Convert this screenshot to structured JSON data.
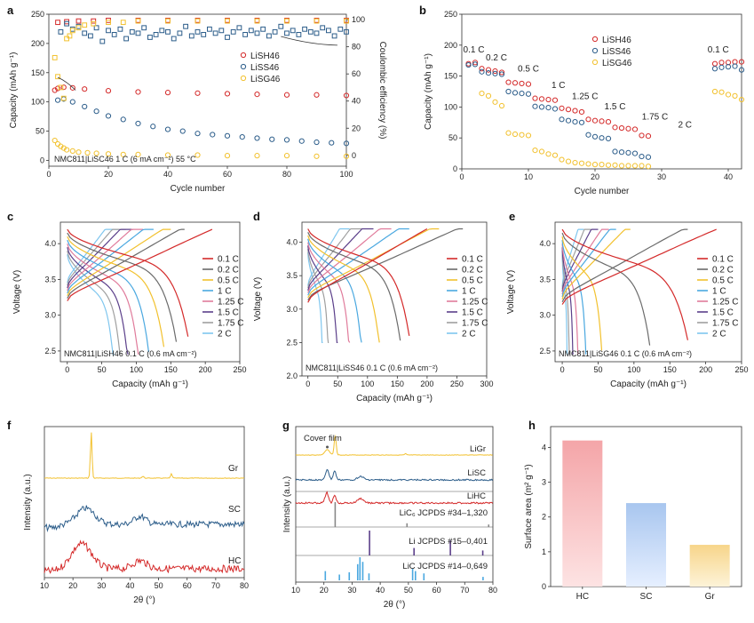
{
  "colors": {
    "red": "#d42a2a",
    "blue": "#2c5d8a",
    "yellow": "#f2c12e",
    "grey": "#888888",
    "purple": "#5b3f8a",
    "cyan": "#4aa8e0"
  },
  "rate_colors": [
    "#d42a2a",
    "#6b6b6b",
    "#f2c12e",
    "#4aa8e0",
    "#e07b9b",
    "#5b3f8a",
    "#9f9f9f",
    "#7fc6ee"
  ],
  "chart_data": [
    {
      "id": "a",
      "type": "scatter",
      "panel_letter": "a",
      "xlabel": "Cycle number",
      "ylabel": "Capacity (mAh g⁻¹)",
      "y2label": "Coulombic efficiency (%)",
      "xlim": [
        0,
        100
      ],
      "ylim": [
        -10,
        250
      ],
      "y2lim": [
        -8,
        104
      ],
      "xticks": [
        "0",
        "20",
        "40",
        "60",
        "80",
        "100"
      ],
      "yticks": [
        "0",
        "50",
        "100",
        "150",
        "200",
        "250"
      ],
      "y2ticks": [
        "0",
        "20",
        "40",
        "60",
        "80",
        "100"
      ],
      "annotation": "NMC811|LiSC46 1 C (6 mA cm⁻²) 55 °C",
      "legend": [
        "LiSH46",
        "LiSS46",
        "LiSG46"
      ],
      "capacity_series": [
        {
          "name": "LiSH46",
          "x": [
            2,
            3,
            5,
            8,
            12,
            20,
            30,
            40,
            50,
            60,
            70,
            80,
            90,
            100
          ],
          "y": [
            120,
            123,
            125,
            124,
            122,
            119,
            117,
            116,
            115,
            114,
            113,
            112,
            112,
            111
          ]
        },
        {
          "name": "LiSS46",
          "x": [
            3,
            5,
            8,
            12,
            16,
            20,
            25,
            30,
            35,
            40,
            45,
            50,
            55,
            60,
            65,
            70,
            75,
            80,
            85,
            90,
            95,
            100
          ],
          "y": [
            103,
            105,
            100,
            92,
            84,
            76,
            70,
            63,
            58,
            53,
            50,
            46,
            44,
            42,
            40,
            38,
            36,
            35,
            33,
            31,
            30,
            29
          ]
        },
        {
          "name": "LiSG46",
          "x": [
            2,
            3,
            4,
            5,
            6,
            8,
            10,
            13,
            16,
            20,
            25,
            30,
            40,
            50,
            60,
            70,
            80,
            90,
            100
          ],
          "y": [
            34,
            28,
            24,
            21,
            18,
            16,
            14,
            13,
            12,
            11,
            10,
            10,
            9,
            9,
            8,
            8,
            8,
            7,
            7
          ]
        }
      ],
      "ce_series": [
        {
          "name": "LiSH46",
          "x": [
            3,
            6,
            10,
            15,
            20,
            30,
            40,
            50,
            60,
            70,
            80,
            90,
            100
          ],
          "y": [
            98,
            98.5,
            99,
            99,
            99.5,
            99.5,
            99.5,
            99.5,
            99.5,
            99.5,
            99.5,
            99.5,
            99.5
          ]
        },
        {
          "name": "LiSS46",
          "x": [
            4,
            6,
            8,
            10,
            12,
            14,
            16,
            18,
            20,
            22,
            24,
            26,
            28,
            30,
            32,
            34,
            36,
            38,
            40,
            42,
            44,
            46,
            48,
            50,
            52,
            54,
            56,
            58,
            60,
            62,
            64,
            66,
            68,
            70,
            72,
            74,
            76,
            78,
            80,
            82,
            84,
            86,
            88,
            90,
            92,
            94,
            96,
            98,
            100
          ],
          "y": [
            91,
            97,
            93,
            95,
            90,
            88,
            94,
            84,
            92,
            89,
            93,
            86,
            91,
            90,
            94,
            87,
            89,
            92,
            91,
            86,
            90,
            95,
            88,
            91,
            89,
            93,
            90,
            92,
            87,
            91,
            94,
            89,
            92,
            90,
            93,
            88,
            91,
            95,
            90,
            92,
            89,
            93,
            91,
            90,
            94,
            92,
            88,
            93,
            91
          ]
        },
        {
          "name": "LiSG46",
          "x": [
            2,
            3,
            4,
            5,
            6,
            7,
            8,
            10,
            12,
            15,
            20,
            25,
            30,
            40,
            50,
            60,
            70,
            80,
            90,
            100
          ],
          "y": [
            72,
            58,
            50,
            42,
            86,
            88,
            92,
            94,
            96,
            97,
            98,
            98,
            99,
            99,
            99,
            99,
            99,
            99,
            99,
            99
          ]
        }
      ]
    },
    {
      "id": "b",
      "type": "scatter",
      "panel_letter": "b",
      "xlabel": "Cycle number",
      "ylabel": "Capacity (mAh g⁻¹)",
      "xlim": [
        0,
        42
      ],
      "ylim": [
        0,
        250
      ],
      "xticks": [
        "0",
        "10",
        "20",
        "30",
        "40"
      ],
      "yticks": [
        "0",
        "50",
        "100",
        "150",
        "200",
        "250"
      ],
      "legend": [
        "LiSH46",
        "LiSS46",
        "LiSG46"
      ],
      "rate_labels": [
        "0.1 C",
        "0.2 C",
        "0.5 C",
        "1 C",
        "1.25 C",
        "1.5 C",
        "1.75 C",
        "2 C",
        "0.1 C"
      ],
      "series": [
        {
          "name": "LiSH46",
          "y": [
            170,
            172,
            162,
            160,
            158,
            156,
            140,
            139,
            138,
            137,
            114,
            113,
            112,
            111,
            98,
            96,
            94,
            92,
            80,
            78,
            77,
            76,
            67,
            66,
            65,
            64,
            54,
            53,
            null,
            null,
            null,
            null,
            null,
            null,
            null,
            null,
            null,
            170,
            172,
            172,
            173,
            173
          ]
        },
        {
          "name": "LiSS46",
          "y": [
            168,
            169,
            157,
            155,
            154,
            153,
            125,
            123,
            122,
            121,
            101,
            100,
            99,
            97,
            80,
            78,
            76,
            75,
            55,
            52,
            50,
            49,
            28,
            27,
            26,
            25,
            20,
            19,
            null,
            null,
            null,
            null,
            null,
            null,
            null,
            null,
            null,
            162,
            164,
            165,
            166,
            160
          ]
        },
        {
          "name": "LiSG46",
          "y": [
            null,
            null,
            122,
            118,
            108,
            102,
            58,
            56,
            55,
            54,
            30,
            28,
            24,
            22,
            15,
            12,
            10,
            9,
            8,
            7,
            7,
            6,
            6,
            5,
            5,
            5,
            5,
            4,
            null,
            null,
            null,
            null,
            null,
            null,
            null,
            null,
            null,
            125,
            124,
            120,
            118,
            112
          ]
        }
      ]
    },
    {
      "id": "c",
      "type": "line",
      "panel_letter": "c",
      "xlabel": "Capacity (mAh g⁻¹)",
      "ylabel": "Voltage (V)",
      "xlim": [
        -10,
        250
      ],
      "ylim": [
        2.35,
        4.3
      ],
      "xticks": [
        "0",
        "50",
        "100",
        "150",
        "200",
        "250"
      ],
      "yticks": [
        "2.5",
        "3.0",
        "3.5",
        "4.0"
      ],
      "annotation": "NMC811|LiSH46 0.1 C (0.6 mA cm⁻²)",
      "legend": [
        "0.1 C",
        "0.2 C",
        "0.5 C",
        "1 C",
        "1.25 C",
        "1.5 C",
        "1.75 C",
        "2 C"
      ],
      "charge_caps": [
        210,
        170,
        150,
        125,
        110,
        95,
        85,
        75
      ],
      "discharge_caps": [
        175,
        158,
        140,
        118,
        103,
        88,
        78,
        68
      ]
    },
    {
      "id": "d",
      "type": "line",
      "panel_letter": "d",
      "xlabel": "Capacity (mAh g⁻¹)",
      "ylabel": "Voltage (V)",
      "xlim": [
        -10,
        300
      ],
      "ylim": [
        2.0,
        4.3
      ],
      "xticks": [
        "0",
        "50",
        "100",
        "150",
        "200",
        "250",
        "300"
      ],
      "yticks": [
        "2.0",
        "2.5",
        "3.0",
        "3.5",
        "4.0"
      ],
      "annotation": "NMC811|LiSS46 0.1 C (0.6 mA cm⁻²)",
      "legend": [
        "0.1 C",
        "0.2 C",
        "0.5 C",
        "1 C",
        "1.25 C",
        "1.5 C",
        "1.75 C",
        "2 C"
      ],
      "charge_caps": [
        200,
        260,
        220,
        170,
        140,
        110,
        90,
        70
      ],
      "discharge_caps": [
        170,
        155,
        120,
        90,
        70,
        50,
        35,
        25
      ]
    },
    {
      "id": "e",
      "type": "line",
      "panel_letter": "e",
      "xlabel": "Capacity (mAh g⁻¹)",
      "ylabel": "Voltage (V)",
      "xlim": [
        -10,
        250
      ],
      "ylim": [
        2.35,
        4.3
      ],
      "xticks": [
        "0",
        "50",
        "100",
        "150",
        "200",
        "250"
      ],
      "yticks": [
        "2.5",
        "3.0",
        "3.5",
        "4.0"
      ],
      "annotation": "NMC811|LiSG46 0.1 C (0.6 mA cm⁻²)",
      "legend": [
        "0.1 C",
        "0.2 C",
        "0.5 C",
        "1 C",
        "1.25 C",
        "1.5 C",
        "1.75 C",
        "2 C"
      ],
      "charge_caps": [
        215,
        175,
        95,
        75,
        65,
        50,
        40,
        30
      ],
      "discharge_caps": [
        175,
        122,
        55,
        33,
        22,
        15,
        10,
        7
      ]
    },
    {
      "id": "f",
      "type": "line",
      "panel_letter": "f",
      "xlabel": "2θ (°)",
      "ylabel": "Intensity (a.u.)",
      "xlim": [
        10,
        80
      ],
      "xticks": [
        "10",
        "20",
        "30",
        "40",
        "50",
        "60",
        "70",
        "80"
      ],
      "labels": [
        "Gr",
        "SC",
        "HC"
      ]
    },
    {
      "id": "g",
      "type": "line",
      "panel_letter": "g",
      "xlabel": "2θ (°)",
      "ylabel": "Intensity (a.u.)",
      "xlim": [
        10,
        80
      ],
      "xticks": [
        "10",
        "20",
        "30",
        "40",
        "50",
        "60",
        "70",
        "80"
      ],
      "labels": [
        "LiGr",
        "LiSC",
        "LiHC"
      ],
      "annotation": "Cover film",
      "refs": [
        {
          "name": "LiC₆ JCPDS #34–1,320",
          "peaks": [
            [
              24.0,
              1
            ],
            [
              49.5,
              0.15
            ],
            [
              78.5,
              0.1
            ]
          ]
        },
        {
          "name": "Li JCPDS #15–0,401",
          "peaks": [
            [
              36.2,
              1
            ],
            [
              52.0,
              0.3
            ],
            [
              64.9,
              0.6
            ],
            [
              76.4,
              0.2
            ]
          ]
        },
        {
          "name": "LiC JCPDS #14–0,649",
          "peaks": [
            [
              20.5,
              0.4
            ],
            [
              25.5,
              0.25
            ],
            [
              29.0,
              0.35
            ],
            [
              32.0,
              0.7
            ],
            [
              32.8,
              1
            ],
            [
              33.8,
              0.8
            ],
            [
              36.0,
              0.3
            ],
            [
              51.5,
              0.5
            ],
            [
              52.5,
              0.4
            ],
            [
              55.5,
              0.3
            ],
            [
              76.5,
              0.15
            ]
          ]
        }
      ]
    },
    {
      "id": "h",
      "type": "bar",
      "panel_letter": "h",
      "ylabel": "Surface area (m² g⁻¹)",
      "categories": [
        "HC",
        "SC",
        "Gr"
      ],
      "values": [
        4.2,
        2.4,
        1.2
      ],
      "ylim": [
        0,
        4.6
      ],
      "yticks": [
        "0",
        "1",
        "2",
        "3",
        "4"
      ]
    }
  ]
}
